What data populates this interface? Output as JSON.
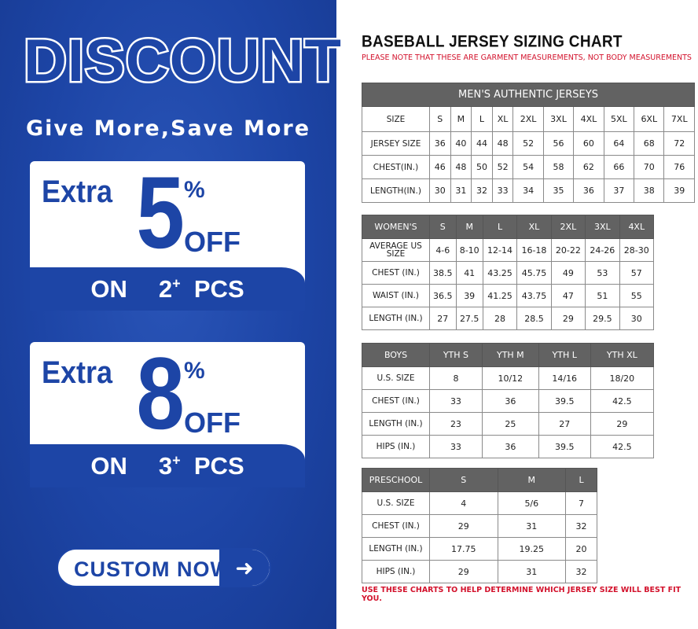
{
  "promo": {
    "headline": "DISCOUNT",
    "tagline": "Give More,Save More",
    "offers": [
      {
        "label": "Extra",
        "number": "5",
        "percent": "%",
        "off": "OFF",
        "on": "ON",
        "qty": "2",
        "plus": "+",
        "pcs": "PCS"
      },
      {
        "label": "Extra",
        "number": "8",
        "percent": "%",
        "off": "OFF",
        "on": "ON",
        "qty": "3",
        "plus": "+",
        "pcs": "PCS"
      }
    ],
    "button": {
      "label": "CUSTOM NOW",
      "icon": "arrow-right-icon"
    },
    "colors": {
      "brand_blue": "#1d45a6"
    }
  },
  "chart": {
    "title": "BASEBALL JERSEY SIZING CHART",
    "note": "PLEASE NOTE THAT THESE ARE GARMENT MEASUREMENTS, NOT BODY MEASUREMENTS",
    "footer": "USE THESE CHARTS TO HELP DETERMINE WHICH JERSEY SIZE WILL BEST FIT YOU.",
    "colors": {
      "note_red": "#d3122c",
      "header_gray": "#626262"
    }
  },
  "chart_data": [
    {
      "type": "table",
      "title": "MEN'S AUTHENTIC JERSEYS",
      "headers": [
        "SIZE",
        "S",
        "M",
        "L",
        "XL",
        "2XL",
        "3XL",
        "4XL",
        "5XL",
        "6XL",
        "7XL"
      ],
      "rows": [
        [
          "JERSEY SIZE",
          "36",
          "40",
          "44",
          "48",
          "52",
          "56",
          "60",
          "64",
          "68",
          "72"
        ],
        [
          "CHEST(IN.)",
          "46",
          "48",
          "50",
          "52",
          "54",
          "58",
          "62",
          "66",
          "70",
          "76"
        ],
        [
          "LENGTH(IN.)",
          "30",
          "31",
          "32",
          "33",
          "34",
          "35",
          "36",
          "37",
          "38",
          "39"
        ]
      ]
    },
    {
      "type": "table",
      "headers": [
        "WOMEN'S",
        "S",
        "M",
        "L",
        "XL",
        "2XL",
        "3XL",
        "4XL"
      ],
      "rows": [
        [
          "AVERAGE US SIZE",
          "4-6",
          "8-10",
          "12-14",
          "16-18",
          "20-22",
          "24-26",
          "28-30"
        ],
        [
          "CHEST (IN.)",
          "38.5",
          "41",
          "43.25",
          "45.75",
          "49",
          "53",
          "57"
        ],
        [
          "WAIST (IN.)",
          "36.5",
          "39",
          "41.25",
          "43.75",
          "47",
          "51",
          "55"
        ],
        [
          "LENGTH (IN.)",
          "27",
          "27.5",
          "28",
          "28.5",
          "29",
          "29.5",
          "30"
        ]
      ]
    },
    {
      "type": "table",
      "headers": [
        "BOYS",
        "YTH S",
        "YTH M",
        "YTH L",
        "YTH XL"
      ],
      "rows": [
        [
          "U.S. SIZE",
          "8",
          "10/12",
          "14/16",
          "18/20"
        ],
        [
          "CHEST (IN.)",
          "33",
          "36",
          "39.5",
          "42.5"
        ],
        [
          "LENGTH (IN.)",
          "23",
          "25",
          "27",
          "29"
        ],
        [
          "HIPS (IN.)",
          "33",
          "36",
          "39.5",
          "42.5"
        ]
      ]
    },
    {
      "type": "table",
      "headers": [
        "PRESCHOOL",
        "S",
        "M",
        "L"
      ],
      "rows": [
        [
          "U.S. SIZE",
          "4",
          "5/6",
          "7"
        ],
        [
          "CHEST (IN.)",
          "29",
          "31",
          "32"
        ],
        [
          "LENGTH (IN.)",
          "17.75",
          "19.25",
          "20"
        ],
        [
          "HIPS (IN.)",
          "29",
          "31",
          "32"
        ]
      ]
    }
  ]
}
